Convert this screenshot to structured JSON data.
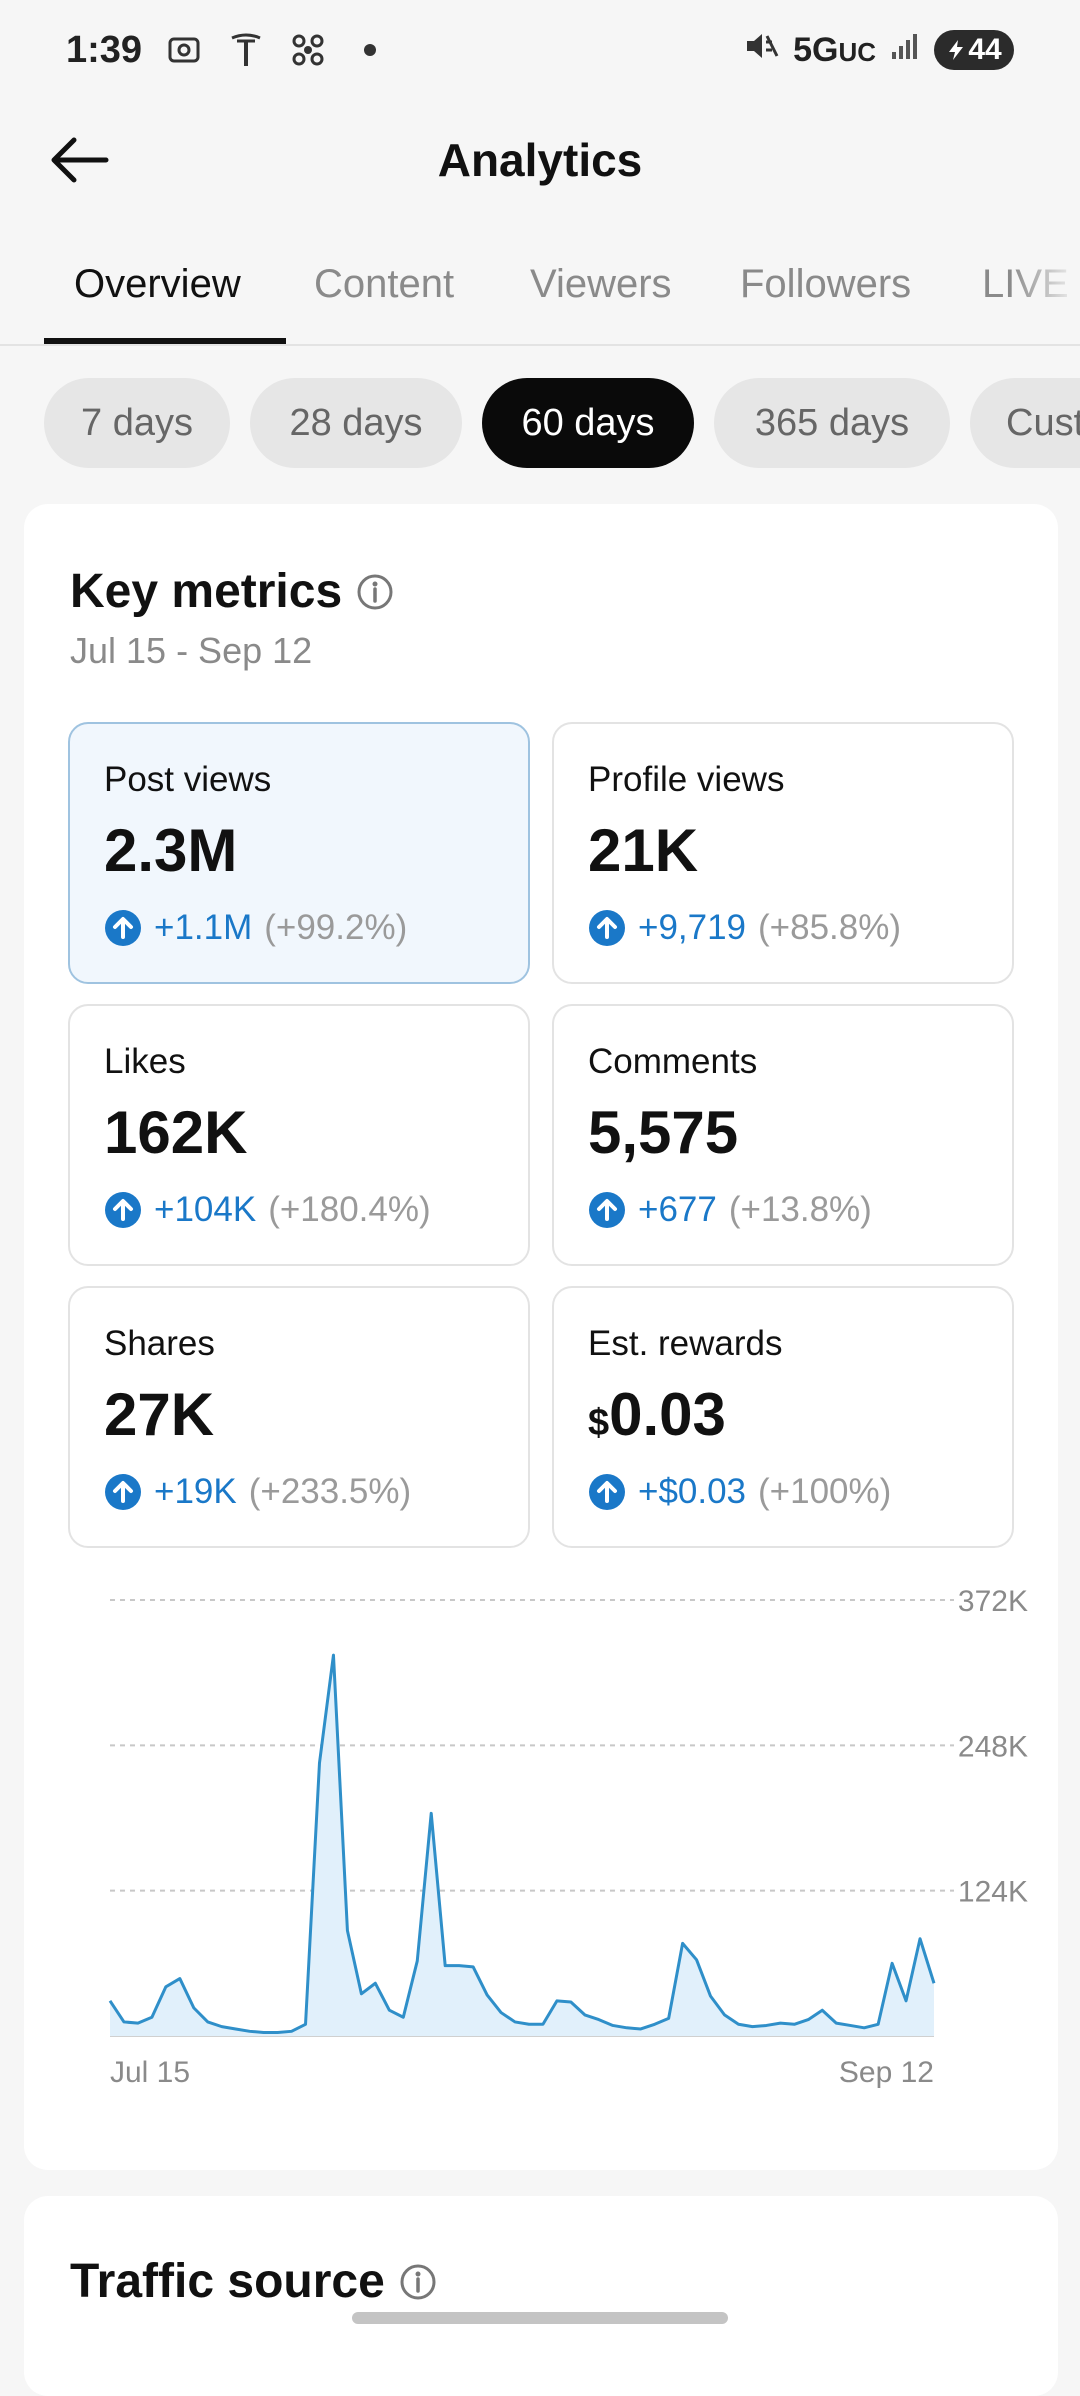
{
  "status_bar": {
    "time": "1:39",
    "network": "5G",
    "network_sub": "UC",
    "battery": "44"
  },
  "header": {
    "title": "Analytics"
  },
  "tabs": [
    {
      "label": "Overview",
      "active": true
    },
    {
      "label": "Content",
      "active": false
    },
    {
      "label": "Viewers",
      "active": false
    },
    {
      "label": "Followers",
      "active": false
    },
    {
      "label": "LIVE",
      "active": false
    }
  ],
  "date_ranges": [
    {
      "label": "7 days",
      "active": false
    },
    {
      "label": "28 days",
      "active": false
    },
    {
      "label": "60 days",
      "active": true
    },
    {
      "label": "365 days",
      "active": false
    },
    {
      "label": "Custom",
      "active": false
    }
  ],
  "key_metrics": {
    "title": "Key metrics",
    "date_range": "Jul 15 - Sep 12",
    "metrics": [
      {
        "label": "Post views",
        "value": "2.3M",
        "delta": "+1.1M",
        "percent": "(+99.2%)",
        "selected": true
      },
      {
        "label": "Profile views",
        "value": "21K",
        "delta": "+9,719",
        "percent": "(+85.8%)",
        "selected": false
      },
      {
        "label": "Likes",
        "value": "162K",
        "delta": "+104K",
        "percent": "(+180.4%)",
        "selected": false
      },
      {
        "label": "Comments",
        "value": "5,575",
        "delta": "+677",
        "percent": "(+13.8%)",
        "selected": false
      },
      {
        "label": "Shares",
        "value": "27K",
        "delta": "+19K",
        "percent": "(+233.5%)",
        "selected": false
      },
      {
        "label": "Est. rewards",
        "currency": "$",
        "value": "0.03",
        "delta": "+$0.03",
        "percent": "(+100%)",
        "selected": false
      }
    ]
  },
  "chart_data": {
    "type": "area",
    "series_name": "Post views",
    "x_start_label": "Jul 15",
    "x_end_label": "Sep 12",
    "y_ticks": [
      124000,
      248000,
      372000
    ],
    "y_tick_labels": [
      "124K",
      "248K",
      "372K"
    ],
    "ylim": [
      0,
      372000
    ],
    "grid": true,
    "values": [
      30000,
      12000,
      11000,
      16000,
      42000,
      49000,
      24000,
      12000,
      8000,
      6000,
      4000,
      3000,
      3000,
      4000,
      10000,
      233000,
      325000,
      90000,
      36000,
      45000,
      22000,
      16000,
      64000,
      190000,
      60000,
      60000,
      59000,
      35000,
      20000,
      12000,
      10000,
      10000,
      30000,
      29000,
      18000,
      14000,
      9000,
      7000,
      6000,
      10000,
      15000,
      79000,
      65000,
      34000,
      18000,
      10000,
      8000,
      9000,
      11000,
      10000,
      14000,
      22000,
      11000,
      9000,
      7000,
      10000,
      62000,
      30000,
      83000,
      45000
    ],
    "color": "#2f8fc9",
    "fill_color": "#e1f0fb"
  },
  "traffic_source": {
    "title": "Traffic source"
  }
}
